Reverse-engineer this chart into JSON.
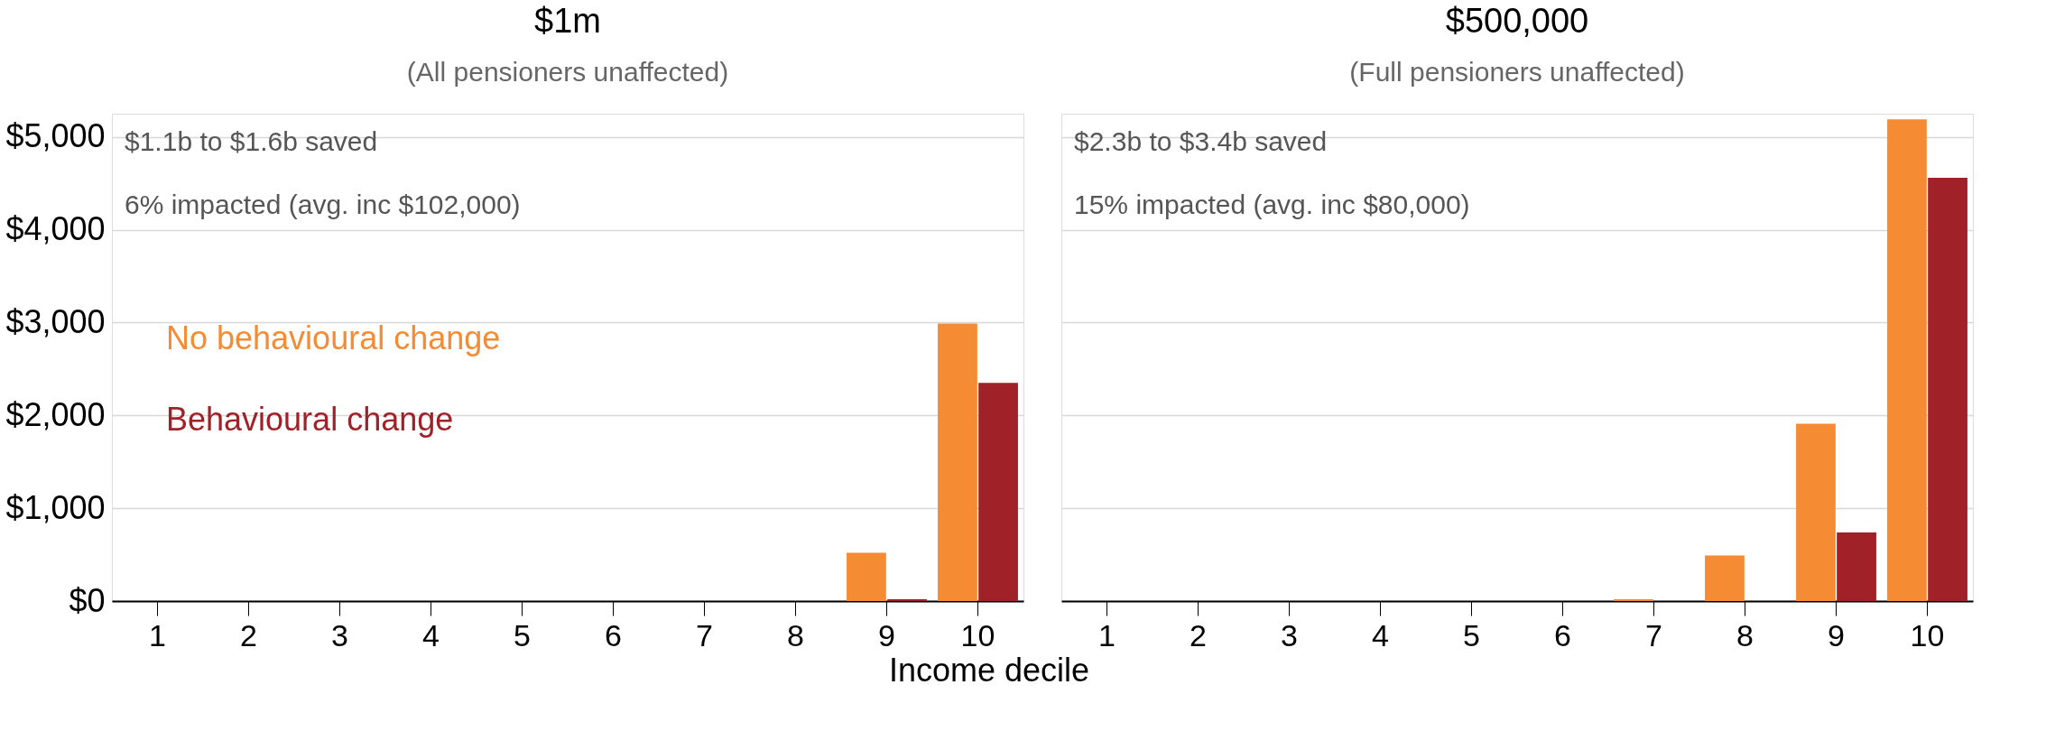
{
  "chart_data": [
    {
      "type": "bar",
      "title": "$1m",
      "subtitle": "(All pensioners unaffected)",
      "xlabel": "Income decile",
      "categories": [
        "1",
        "2",
        "3",
        "4",
        "5",
        "6",
        "7",
        "8",
        "9",
        "10"
      ],
      "series": [
        {
          "name": "No behavioural change",
          "color": "#f58b33",
          "values": [
            0,
            0,
            0,
            0,
            0,
            0,
            0,
            0,
            520,
            2990
          ]
        },
        {
          "name": "Behavioural change",
          "color": "#a02127",
          "values": [
            0,
            0,
            0,
            0,
            0,
            0,
            0,
            0,
            20,
            2350
          ]
        }
      ],
      "ylim": [
        0,
        5250
      ],
      "yticks": [
        {
          "value": 0,
          "label": "$0"
        },
        {
          "value": 1000,
          "label": "$1,000"
        },
        {
          "value": 2000,
          "label": "$2,000"
        },
        {
          "value": 3000,
          "label": "$3,000"
        },
        {
          "value": 4000,
          "label": "$4,000"
        },
        {
          "value": 5000,
          "label": "$5,000"
        }
      ],
      "grid": "y",
      "legend": "left",
      "annotations": [
        "$1.1b to $1.6b saved",
        "6% impacted (avg. inc $102,000)"
      ]
    },
    {
      "type": "bar",
      "title": "$500,000",
      "subtitle": "(Full pensioners unaffected)",
      "categories": [
        "1",
        "2",
        "3",
        "4",
        "5",
        "6",
        "7",
        "8",
        "9",
        "10"
      ],
      "series": [
        {
          "color": "#f58b33",
          "values": [
            0,
            0,
            0,
            0,
            0,
            0,
            20,
            490,
            1910,
            5190
          ]
        },
        {
          "color": "#a02127",
          "values": [
            0,
            0,
            0,
            0,
            0,
            0,
            0,
            0,
            740,
            4560
          ]
        }
      ],
      "ylim": [
        0,
        5250
      ],
      "yticks": [
        {
          "value": 0,
          "label": null
        },
        {
          "value": 1000,
          "label": null
        },
        {
          "value": 2000,
          "label": null
        },
        {
          "value": 3000,
          "label": null
        },
        {
          "value": 4000,
          "label": null
        },
        {
          "value": 5000,
          "label": null
        }
      ],
      "grid": "y",
      "tick_labels": "x",
      "annotations": [
        "$2.3b to $3.4b saved",
        "15% impacted (avg. inc $80,000)"
      ]
    }
  ]
}
